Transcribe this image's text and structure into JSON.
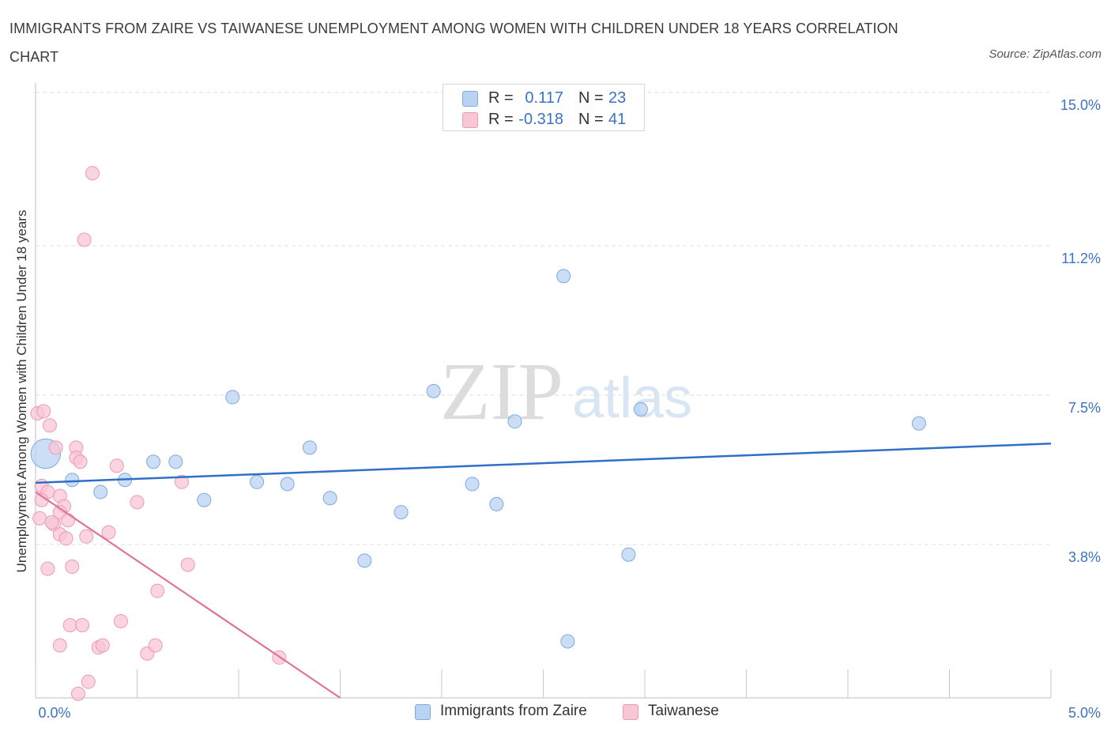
{
  "title": "IMMIGRANTS FROM ZAIRE VS TAIWANESE UNEMPLOYMENT AMONG WOMEN WITH CHILDREN UNDER 18 YEARS CORRELATION CHART",
  "source": "Source: ZipAtlas.com",
  "watermark": {
    "zip": "ZIP",
    "atlas": "atlas"
  },
  "legend_top": {
    "rows": [
      {
        "r_label": "R =",
        "r_value": "0.117",
        "n_label": "N =",
        "n_value": "23"
      },
      {
        "r_label": "R =",
        "r_value": "-0.318",
        "n_label": "N =",
        "n_value": "41"
      }
    ]
  },
  "colors": {
    "blue_fill": "#b9d3f3",
    "blue_stroke": "#7ea9e1",
    "blue_line": "#2f6fc7",
    "pink_fill": "#f8c6d5",
    "pink_stroke": "#ee9ab4",
    "pink_line": "#e07399",
    "tick_text": "#3d72c2",
    "grid": "#dcdcdc"
  },
  "chart_data": {
    "type": "scatter",
    "title": "IMMIGRANTS FROM ZAIRE VS TAIWANESE UNEMPLOYMENT AMONG WOMEN WITH CHILDREN UNDER 18 YEARS CORRELATION CHART",
    "xlabel": "",
    "ylabel": "Unemployment Among Women with Children Under 18 years",
    "xlim": [
      0,
      5
    ],
    "ylim": [
      0,
      15
    ],
    "x_tick_labels": [
      "0.0%",
      "5.0%"
    ],
    "y_ticks": [
      {
        "value": 3.8,
        "label": "3.8%"
      },
      {
        "value": 7.5,
        "label": "7.5%"
      },
      {
        "value": 11.2,
        "label": "11.2%"
      },
      {
        "value": 15.0,
        "label": "15.0%"
      }
    ],
    "grid": true,
    "legend_position": "bottom-center",
    "series": [
      {
        "name": "Immigrants from Zaire",
        "color": "blue",
        "r": 0.117,
        "n": 23,
        "trend": [
          [
            0.0,
            5.33
          ],
          [
            5.0,
            6.3
          ]
        ],
        "points": [
          [
            0.05,
            6.05,
            2.2
          ],
          [
            0.18,
            5.4,
            1
          ],
          [
            0.32,
            5.1,
            1
          ],
          [
            0.44,
            5.4,
            1
          ],
          [
            0.58,
            5.85,
            1
          ],
          [
            0.69,
            5.85,
            1
          ],
          [
            0.83,
            4.9,
            1
          ],
          [
            0.97,
            7.45,
            1
          ],
          [
            1.09,
            5.35,
            1
          ],
          [
            1.24,
            5.3,
            1
          ],
          [
            1.35,
            6.2,
            1
          ],
          [
            1.45,
            4.95,
            1
          ],
          [
            1.62,
            3.4,
            1
          ],
          [
            1.8,
            4.6,
            1
          ],
          [
            1.96,
            7.6,
            1
          ],
          [
            2.15,
            5.3,
            1
          ],
          [
            2.27,
            4.8,
            1
          ],
          [
            2.36,
            6.85,
            1
          ],
          [
            2.6,
            10.45,
            1
          ],
          [
            2.92,
            3.55,
            1
          ],
          [
            2.98,
            7.15,
            1
          ],
          [
            4.35,
            6.8,
            1
          ],
          [
            2.62,
            1.4,
            1
          ]
        ]
      },
      {
        "name": "Taiwanese",
        "color": "pink",
        "r": -0.318,
        "n": 41,
        "trend": [
          [
            0.0,
            5.1
          ],
          [
            1.5,
            0.0
          ]
        ],
        "points": [
          [
            0.01,
            7.05,
            1
          ],
          [
            0.04,
            7.1,
            1
          ],
          [
            0.07,
            6.75,
            1
          ],
          [
            0.1,
            6.2,
            1
          ],
          [
            0.03,
            5.25,
            1
          ],
          [
            0.06,
            5.1,
            1
          ],
          [
            0.03,
            4.9,
            1
          ],
          [
            0.12,
            5.0,
            1
          ],
          [
            0.14,
            4.75,
            1
          ],
          [
            0.12,
            4.6,
            1
          ],
          [
            0.02,
            4.45,
            1
          ],
          [
            0.09,
            4.3,
            1
          ],
          [
            0.08,
            4.35,
            1
          ],
          [
            0.16,
            4.4,
            1
          ],
          [
            0.12,
            4.05,
            1
          ],
          [
            0.15,
            3.95,
            1
          ],
          [
            0.25,
            4.0,
            1
          ],
          [
            0.36,
            4.1,
            1
          ],
          [
            0.06,
            3.2,
            1
          ],
          [
            0.18,
            3.25,
            1
          ],
          [
            0.2,
            6.2,
            1
          ],
          [
            0.2,
            5.95,
            1
          ],
          [
            0.22,
            5.85,
            1
          ],
          [
            0.4,
            5.75,
            1
          ],
          [
            0.72,
            5.35,
            1
          ],
          [
            0.75,
            3.3,
            1
          ],
          [
            0.6,
            2.65,
            1
          ],
          [
            0.17,
            1.8,
            1
          ],
          [
            0.23,
            1.8,
            1
          ],
          [
            0.42,
            1.9,
            1
          ],
          [
            0.12,
            1.3,
            1
          ],
          [
            0.31,
            1.25,
            1
          ],
          [
            0.33,
            1.3,
            1
          ],
          [
            0.55,
            1.1,
            1
          ],
          [
            0.59,
            1.3,
            1
          ],
          [
            1.2,
            1.0,
            1
          ],
          [
            0.26,
            0.4,
            1
          ],
          [
            0.21,
            0.1,
            1
          ],
          [
            0.24,
            11.35,
            1
          ],
          [
            0.28,
            13.0,
            1
          ],
          [
            0.5,
            4.85,
            1
          ]
        ]
      }
    ]
  },
  "legend_bottom": {
    "items": [
      {
        "label": "Immigrants from Zaire"
      },
      {
        "label": "Taiwanese"
      }
    ]
  }
}
